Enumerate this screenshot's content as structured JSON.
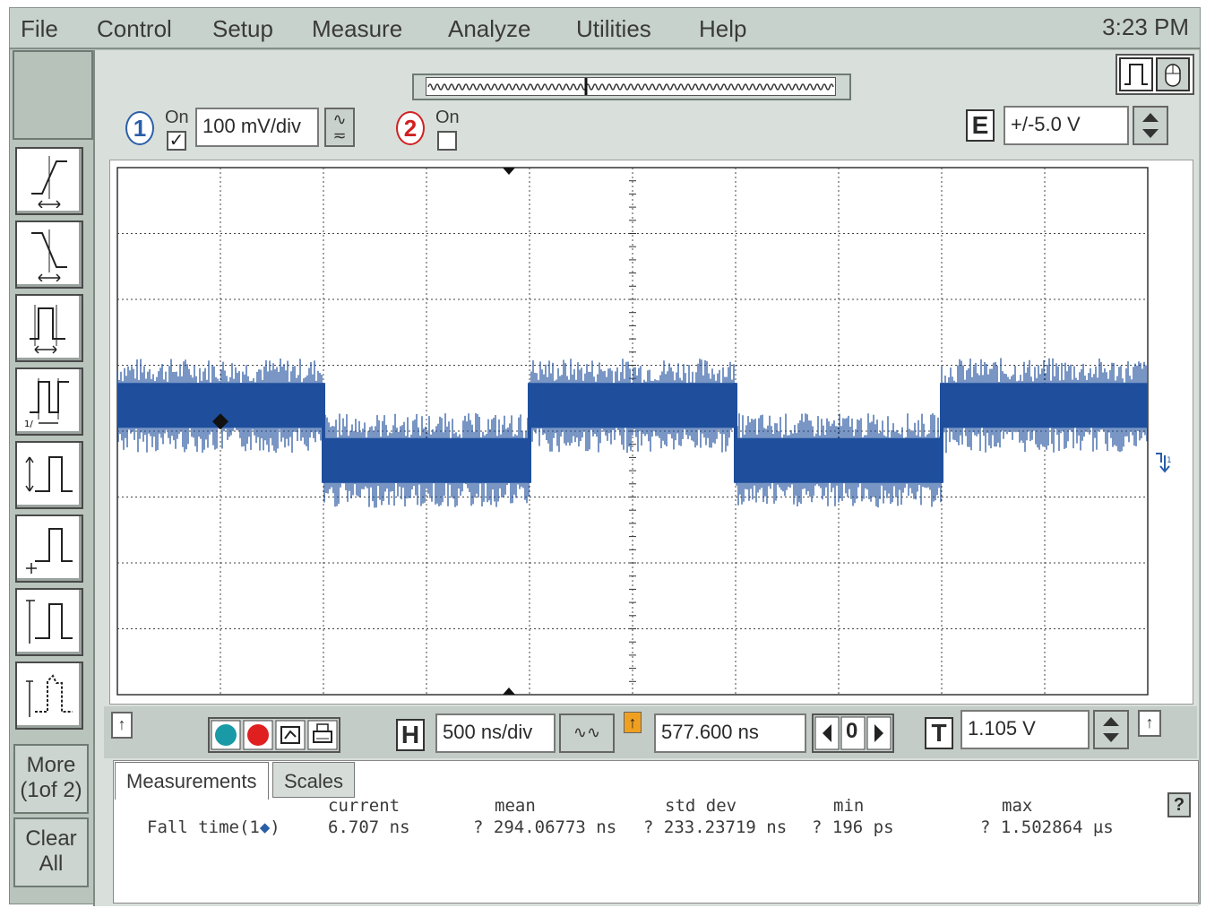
{
  "menu": {
    "items": [
      "File",
      "Control",
      "Setup",
      "Measure",
      "Analyze",
      "Utilities",
      "Help"
    ],
    "clock": "3:23 PM"
  },
  "sidebar": {
    "tools": [
      "rising-edge-icon",
      "falling-edge-icon",
      "pulse-width-icon",
      "period-icon",
      "amplitude-icon",
      "base-level-icon",
      "top-level-icon",
      "overshoot-icon"
    ],
    "more_label": "More",
    "more_sub": "(1of 2)",
    "clear_label": "Clear",
    "clear_sub": "All"
  },
  "channels": {
    "ch1": {
      "number": "1",
      "on_label": "On",
      "checked_mark": "✓",
      "scale": "100 mV/div"
    },
    "ch2": {
      "number": "2",
      "on_label": "On"
    },
    "external": {
      "letter": "E",
      "range": "+/-5.0 V"
    }
  },
  "timebase": {
    "h_letter": "H",
    "scale": "500 ns/div",
    "position": "577.600 ns",
    "zero_label": "0",
    "t_letter": "T",
    "trigger_level": "1.105 V",
    "up_arrow": "↑"
  },
  "tabs": {
    "measurements": "Measurements",
    "scales": "Scales"
  },
  "measurements": {
    "headers": {
      "current": "current",
      "mean": "mean",
      "std_dev": "std dev",
      "min": "min",
      "max": "max"
    },
    "row": {
      "name": "Fall time(1",
      "marker": "◆",
      "close": ")",
      "current": "6.707 ns",
      "mean": "? 294.06773 ns",
      "std_dev": "? 233.23719 ns",
      "min": "? 196 ps",
      "max": "? 1.502864 µs"
    },
    "help_label": "?"
  },
  "waveform": {
    "color": "#1f4f9c",
    "high_segments": [
      [
        0,
        2
      ],
      [
        4,
        6
      ],
      [
        8,
        10
      ]
    ],
    "low_segments": [
      [
        2,
        4
      ],
      [
        6,
        8
      ]
    ],
    "divisions_x": 10,
    "divisions_y": 8
  },
  "colors": {
    "menubar": "#c8d2cc",
    "ch1_color": "#2a5ea8",
    "ch2_color": "#d02020",
    "cursor_marker": "#f0a020"
  }
}
